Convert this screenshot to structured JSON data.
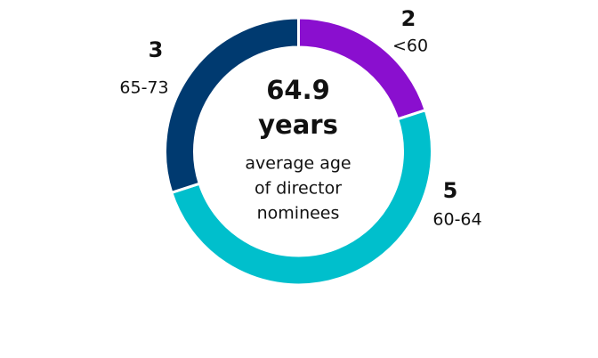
{
  "chart_data": {
    "type": "donut",
    "categories": [
      "<60",
      "60-64",
      "65-73"
    ],
    "values": [
      2,
      5,
      3
    ],
    "colors": [
      "#8a0fcf",
      "#00bfcc",
      "#003a70"
    ],
    "center_value": 64.9,
    "center_unit": "years",
    "center_caption": [
      "average age",
      "of director",
      "nominees"
    ]
  }
}
